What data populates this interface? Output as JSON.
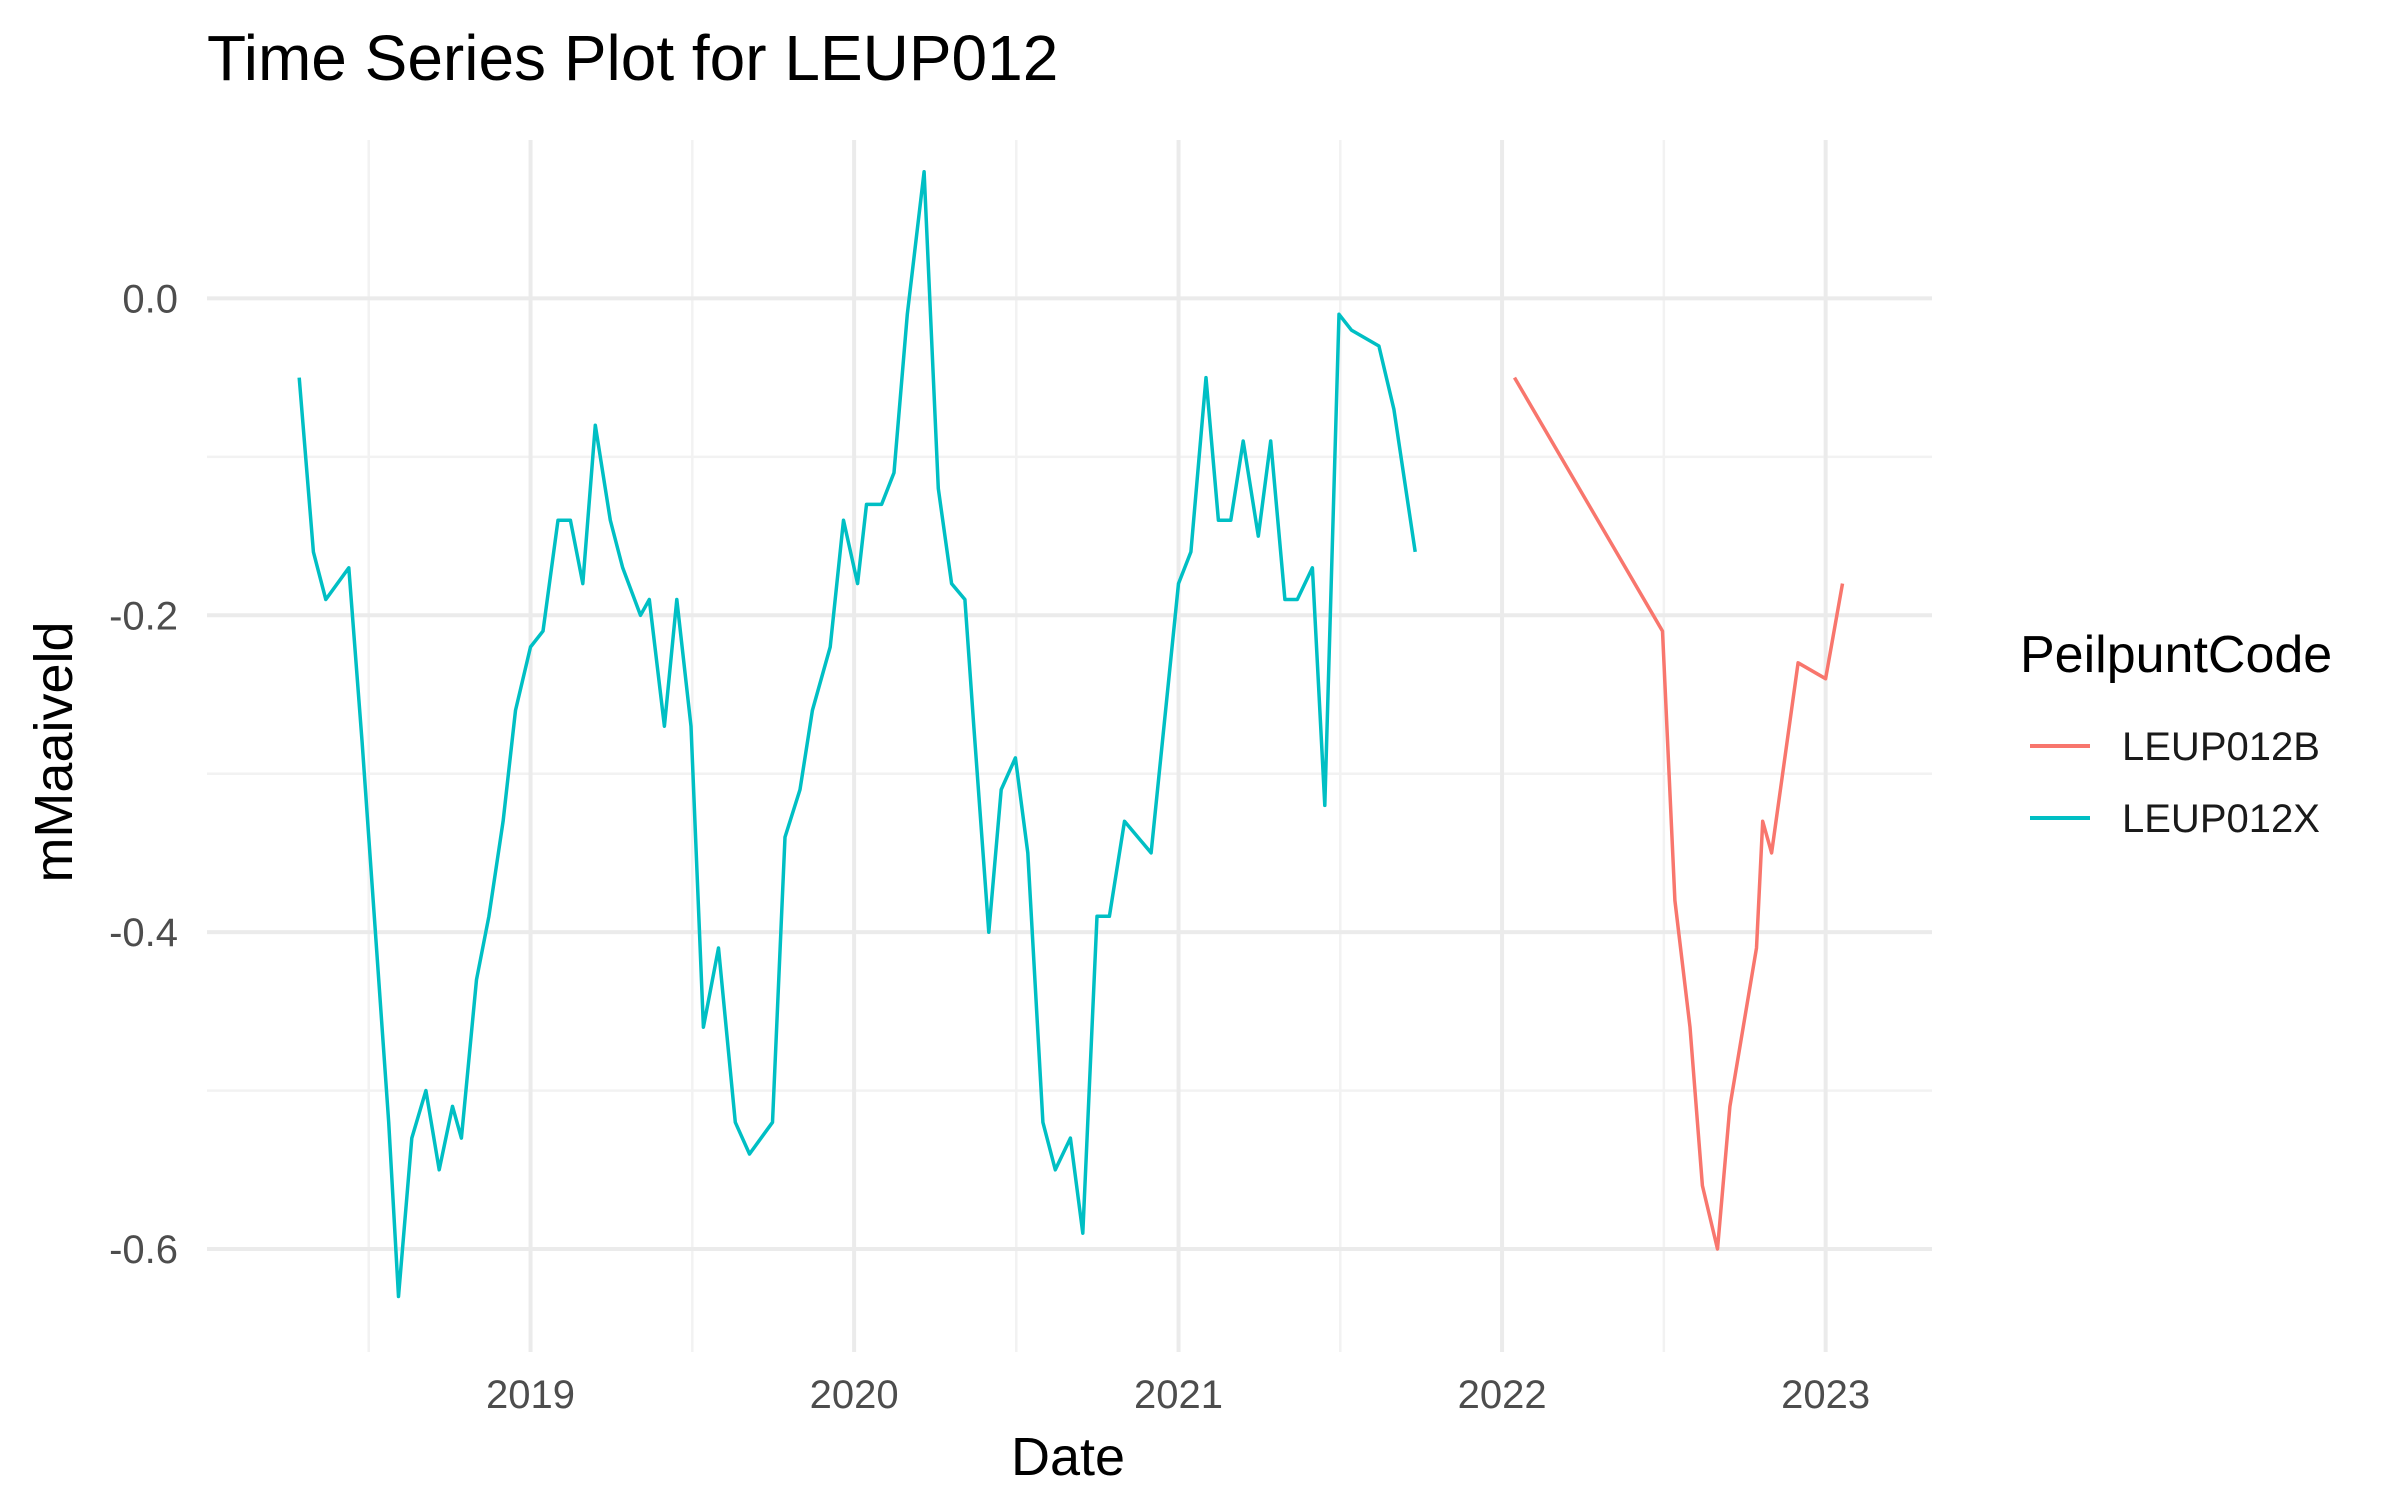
{
  "chart_data": {
    "type": "line",
    "title": "Time Series Plot for LEUP012",
    "xlabel": "Date",
    "ylabel": "mMaaiveld",
    "x_is_date": true,
    "xlim": [
      "2018-01-01",
      "2023-05-01"
    ],
    "ylim": [
      -0.665,
      0.1
    ],
    "x_ticks": [
      "2019-01-01",
      "2020-01-01",
      "2021-01-01",
      "2022-01-01",
      "2023-01-01"
    ],
    "x_tick_labels": [
      "2019",
      "2020",
      "2021",
      "2022",
      "2023"
    ],
    "y_ticks": [
      0.0,
      -0.2,
      -0.4,
      -0.6
    ],
    "y_tick_labels": [
      "0.0",
      "-0.2",
      "-0.4",
      "-0.6"
    ],
    "grid": true,
    "legend": {
      "title": "PeilpuntCode",
      "position": "right"
    },
    "series": [
      {
        "name": "LEUP012B",
        "color": "#F8766D",
        "points": [
          [
            "2022-01-15",
            -0.05
          ],
          [
            "2022-07-01",
            -0.21
          ],
          [
            "2022-07-15",
            -0.38
          ],
          [
            "2022-08-01",
            -0.46
          ],
          [
            "2022-08-15",
            -0.56
          ],
          [
            "2022-09-01",
            -0.6
          ],
          [
            "2022-09-15",
            -0.51
          ],
          [
            "2022-10-15",
            -0.41
          ],
          [
            "2022-10-22",
            -0.33
          ],
          [
            "2022-11-01",
            -0.35
          ],
          [
            "2022-12-01",
            -0.23
          ],
          [
            "2023-01-01",
            -0.24
          ],
          [
            "2023-01-20",
            -0.18
          ]
        ]
      },
      {
        "name": "LEUP012X",
        "color": "#00BFC4",
        "points": [
          [
            "2018-04-15",
            -0.05
          ],
          [
            "2018-05-01",
            -0.16
          ],
          [
            "2018-05-15",
            -0.19
          ],
          [
            "2018-06-10",
            -0.17
          ],
          [
            "2018-06-25",
            -0.28
          ],
          [
            "2018-07-25",
            -0.52
          ],
          [
            "2018-08-05",
            -0.63
          ],
          [
            "2018-08-20",
            -0.53
          ],
          [
            "2018-09-05",
            -0.5
          ],
          [
            "2018-09-20",
            -0.55
          ],
          [
            "2018-10-05",
            -0.51
          ],
          [
            "2018-10-15",
            -0.53
          ],
          [
            "2018-11-01",
            -0.43
          ],
          [
            "2018-11-15",
            -0.39
          ],
          [
            "2018-12-01",
            -0.33
          ],
          [
            "2018-12-15",
            -0.26
          ],
          [
            "2019-01-01",
            -0.22
          ],
          [
            "2019-01-15",
            -0.21
          ],
          [
            "2019-02-01",
            -0.14
          ],
          [
            "2019-02-15",
            -0.14
          ],
          [
            "2019-03-01",
            -0.18
          ],
          [
            "2019-03-15",
            -0.08
          ],
          [
            "2019-04-01",
            -0.14
          ],
          [
            "2019-04-15",
            -0.17
          ],
          [
            "2019-05-05",
            -0.2
          ],
          [
            "2019-05-15",
            -0.19
          ],
          [
            "2019-06-01",
            -0.27
          ],
          [
            "2019-06-15",
            -0.19
          ],
          [
            "2019-07-01",
            -0.27
          ],
          [
            "2019-07-15",
            -0.46
          ],
          [
            "2019-08-01",
            -0.41
          ],
          [
            "2019-08-20",
            -0.52
          ],
          [
            "2019-09-05",
            -0.54
          ],
          [
            "2019-10-01",
            -0.52
          ],
          [
            "2019-10-15",
            -0.34
          ],
          [
            "2019-11-01",
            -0.31
          ],
          [
            "2019-11-15",
            -0.26
          ],
          [
            "2019-12-05",
            -0.22
          ],
          [
            "2019-12-20",
            -0.14
          ],
          [
            "2020-01-05",
            -0.18
          ],
          [
            "2020-01-15",
            -0.13
          ],
          [
            "2020-02-01",
            -0.13
          ],
          [
            "2020-02-15",
            -0.11
          ],
          [
            "2020-03-01",
            -0.01
          ],
          [
            "2020-03-20",
            0.08
          ],
          [
            "2020-04-05",
            -0.12
          ],
          [
            "2020-04-20",
            -0.18
          ],
          [
            "2020-05-05",
            -0.19
          ],
          [
            "2020-05-15",
            -0.27
          ],
          [
            "2020-06-01",
            -0.4
          ],
          [
            "2020-06-15",
            -0.31
          ],
          [
            "2020-07-01",
            -0.29
          ],
          [
            "2020-07-15",
            -0.35
          ],
          [
            "2020-08-01",
            -0.52
          ],
          [
            "2020-08-15",
            -0.55
          ],
          [
            "2020-09-01",
            -0.53
          ],
          [
            "2020-09-15",
            -0.59
          ],
          [
            "2020-10-01",
            -0.39
          ],
          [
            "2020-10-15",
            -0.39
          ],
          [
            "2020-11-01",
            -0.33
          ],
          [
            "2020-12-01",
            -0.35
          ],
          [
            "2021-01-01",
            -0.18
          ],
          [
            "2021-01-15",
            -0.16
          ],
          [
            "2021-02-01",
            -0.05
          ],
          [
            "2021-02-15",
            -0.14
          ],
          [
            "2021-03-01",
            -0.14
          ],
          [
            "2021-03-15",
            -0.09
          ],
          [
            "2021-04-01",
            -0.15
          ],
          [
            "2021-04-15",
            -0.09
          ],
          [
            "2021-05-01",
            -0.19
          ],
          [
            "2021-05-15",
            -0.19
          ],
          [
            "2021-06-01",
            -0.17
          ],
          [
            "2021-06-15",
            -0.32
          ],
          [
            "2021-07-01",
            -0.01
          ],
          [
            "2021-07-15",
            -0.02
          ],
          [
            "2021-08-15",
            -0.03
          ],
          [
            "2021-09-01",
            -0.07
          ],
          [
            "2021-09-25",
            -0.16
          ]
        ]
      }
    ]
  }
}
